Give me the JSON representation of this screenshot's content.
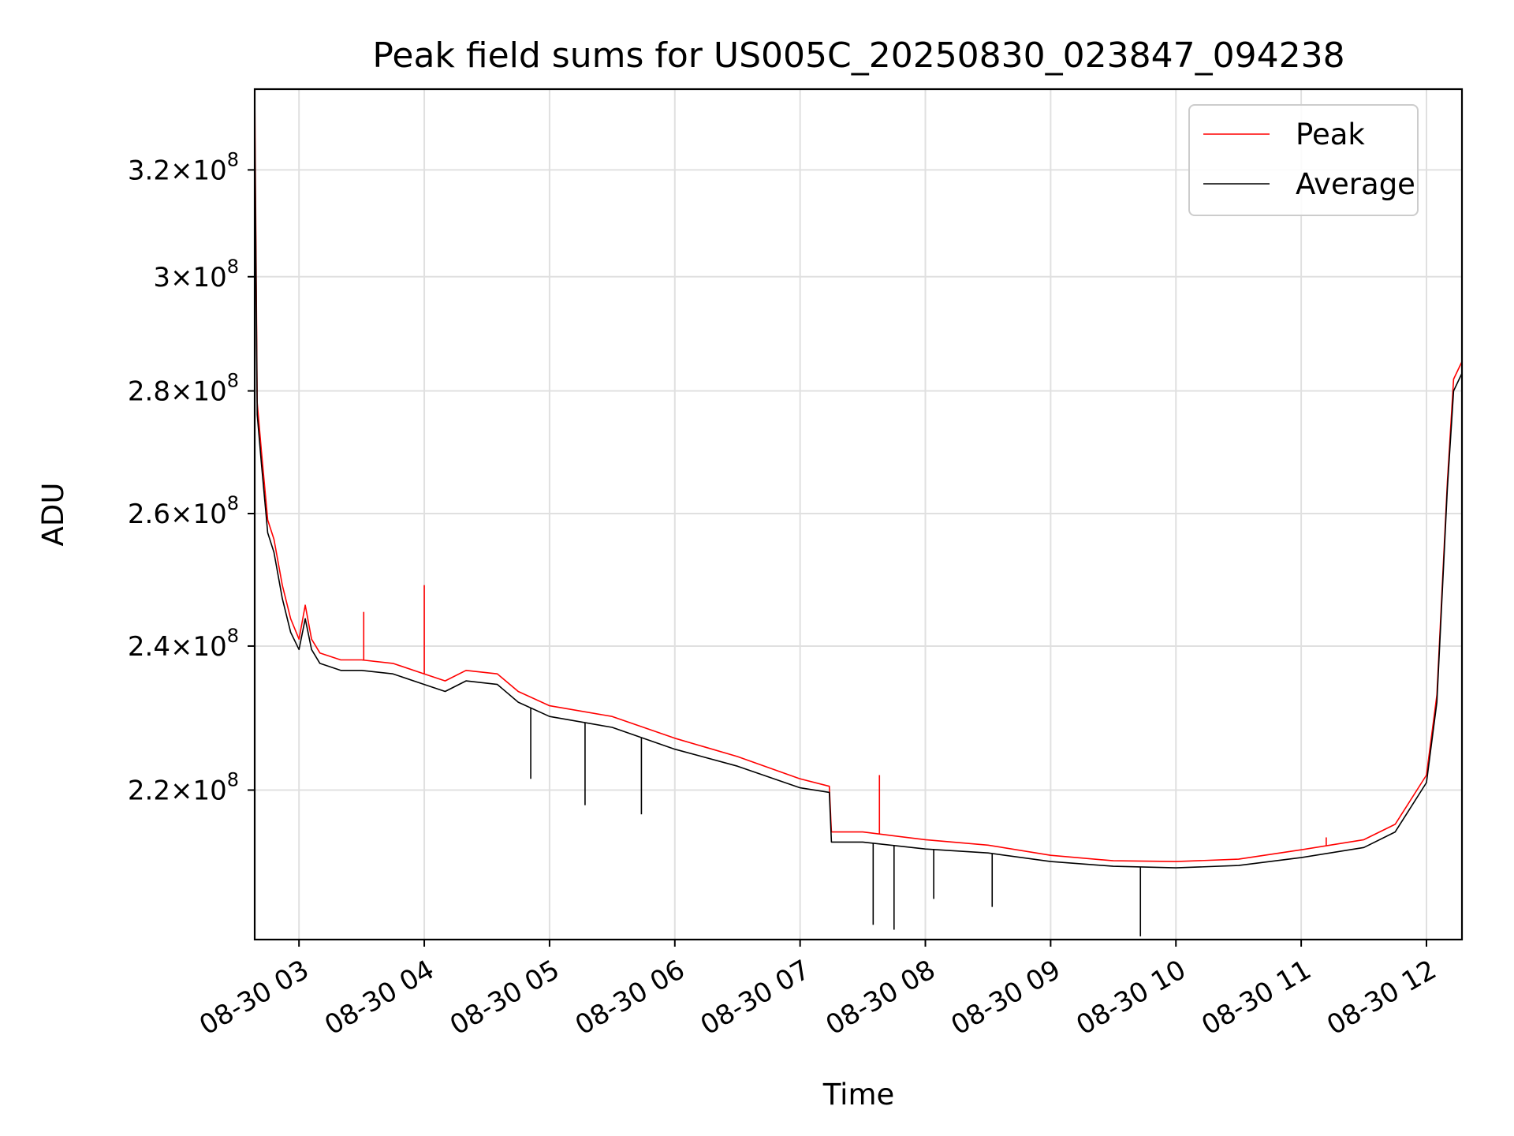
{
  "chart_data": {
    "type": "line",
    "title": "Peak field sums for US005C_20250830_023847_094238",
    "xlabel": "Time",
    "ylabel": "ADU",
    "x_range": [
      "2025-08-30 02:38:47",
      "2025-08-30 12:17:00"
    ],
    "ylim": [
      201000000,
      336000000
    ],
    "y_scale": "log",
    "grid": true,
    "legend_position": "top-right",
    "x_ticks": [
      {
        "time": "2025-08-30 03:00",
        "label": "08-30 03"
      },
      {
        "time": "2025-08-30 04:00",
        "label": "08-30 04"
      },
      {
        "time": "2025-08-30 05:00",
        "label": "08-30 05"
      },
      {
        "time": "2025-08-30 06:00",
        "label": "08-30 06"
      },
      {
        "time": "2025-08-30 07:00",
        "label": "08-30 07"
      },
      {
        "time": "2025-08-30 08:00",
        "label": "08-30 08"
      },
      {
        "time": "2025-08-30 09:00",
        "label": "08-30 09"
      },
      {
        "time": "2025-08-30 10:00",
        "label": "08-30 10"
      },
      {
        "time": "2025-08-30 11:00",
        "label": "08-30 11"
      },
      {
        "time": "2025-08-30 12:00",
        "label": "08-30 12"
      }
    ],
    "y_ticks": [
      {
        "value": 220000000,
        "mant": "2.2",
        "exp": "8"
      },
      {
        "value": 240000000,
        "mant": "2.4",
        "exp": "8"
      },
      {
        "value": 260000000,
        "mant": "2.6",
        "exp": "8"
      },
      {
        "value": 280000000,
        "mant": "2.8",
        "exp": "8"
      },
      {
        "value": 300000000,
        "mant": "3",
        "exp": "8"
      },
      {
        "value": 320000000,
        "mant": "3.2",
        "exp": "8"
      }
    ],
    "series": [
      {
        "name": "Peak",
        "color": "#ff0000",
        "points": [
          [
            "2025-08-30 02:38:47",
            336000000
          ],
          [
            "2025-08-30 02:40",
            278000000
          ],
          [
            "2025-08-30 02:42",
            270000000
          ],
          [
            "2025-08-30 02:45",
            259000000
          ],
          [
            "2025-08-30 02:48",
            256000000
          ],
          [
            "2025-08-30 02:52",
            249000000
          ],
          [
            "2025-08-30 02:56",
            244000000
          ],
          [
            "2025-08-30 03:00",
            241000000
          ],
          [
            "2025-08-30 03:03",
            246000000
          ],
          [
            "2025-08-30 03:06",
            241000000
          ],
          [
            "2025-08-30 03:10",
            239000000
          ],
          [
            "2025-08-30 03:20",
            238000000
          ],
          [
            "2025-08-30 03:30",
            238000000
          ],
          [
            "2025-08-30 03:45",
            237500000
          ],
          [
            "2025-08-30 04:00",
            236000000
          ],
          [
            "2025-08-30 04:10",
            235000000
          ],
          [
            "2025-08-30 04:20",
            236500000
          ],
          [
            "2025-08-30 04:35",
            236000000
          ],
          [
            "2025-08-30 04:45",
            233500000
          ],
          [
            "2025-08-30 05:00",
            231500000
          ],
          [
            "2025-08-30 05:30",
            230000000
          ],
          [
            "2025-08-30 06:00",
            227000000
          ],
          [
            "2025-08-30 06:30",
            224500000
          ],
          [
            "2025-08-30 07:00",
            221500000
          ],
          [
            "2025-08-30 07:14",
            220500000
          ],
          [
            "2025-08-30 07:15",
            214500000
          ],
          [
            "2025-08-30 07:30",
            214500000
          ],
          [
            "2025-08-30 08:00",
            213500000
          ],
          [
            "2025-08-30 08:30",
            212800000
          ],
          [
            "2025-08-30 09:00",
            211500000
          ],
          [
            "2025-08-30 09:30",
            210800000
          ],
          [
            "2025-08-30 10:00",
            210700000
          ],
          [
            "2025-08-30 10:30",
            211000000
          ],
          [
            "2025-08-30 11:00",
            212200000
          ],
          [
            "2025-08-30 11:30",
            213500000
          ],
          [
            "2025-08-30 11:45",
            215500000
          ],
          [
            "2025-08-30 12:00",
            222000000
          ],
          [
            "2025-08-30 12:05",
            233000000
          ],
          [
            "2025-08-30 12:10",
            265000000
          ],
          [
            "2025-08-30 12:13",
            282000000
          ],
          [
            "2025-08-30 12:17",
            285000000
          ]
        ]
      },
      {
        "name": "Average",
        "color": "#000000",
        "points": [
          [
            "2025-08-30 02:38:47",
            330000000
          ],
          [
            "2025-08-30 02:40",
            276000000
          ],
          [
            "2025-08-30 02:42",
            268000000
          ],
          [
            "2025-08-30 02:45",
            257000000
          ],
          [
            "2025-08-30 02:48",
            254000000
          ],
          [
            "2025-08-30 02:52",
            247000000
          ],
          [
            "2025-08-30 02:56",
            242000000
          ],
          [
            "2025-08-30 03:00",
            239500000
          ],
          [
            "2025-08-30 03:03",
            244000000
          ],
          [
            "2025-08-30 03:06",
            239500000
          ],
          [
            "2025-08-30 03:10",
            237500000
          ],
          [
            "2025-08-30 03:20",
            236500000
          ],
          [
            "2025-08-30 03:30",
            236500000
          ],
          [
            "2025-08-30 03:45",
            236000000
          ],
          [
            "2025-08-30 04:00",
            234500000
          ],
          [
            "2025-08-30 04:10",
            233500000
          ],
          [
            "2025-08-30 04:20",
            235000000
          ],
          [
            "2025-08-30 04:35",
            234500000
          ],
          [
            "2025-08-30 04:45",
            232000000
          ],
          [
            "2025-08-30 05:00",
            230000000
          ],
          [
            "2025-08-30 05:30",
            228500000
          ],
          [
            "2025-08-30 06:00",
            225500000
          ],
          [
            "2025-08-30 06:30",
            223200000
          ],
          [
            "2025-08-30 07:00",
            220300000
          ],
          [
            "2025-08-30 07:14",
            219700000
          ],
          [
            "2025-08-30 07:15",
            213200000
          ],
          [
            "2025-08-30 07:30",
            213200000
          ],
          [
            "2025-08-30 08:00",
            212300000
          ],
          [
            "2025-08-30 08:30",
            211800000
          ],
          [
            "2025-08-30 09:00",
            210700000
          ],
          [
            "2025-08-30 09:30",
            210100000
          ],
          [
            "2025-08-30 10:00",
            209900000
          ],
          [
            "2025-08-30 10:30",
            210200000
          ],
          [
            "2025-08-30 11:00",
            211200000
          ],
          [
            "2025-08-30 11:30",
            212500000
          ],
          [
            "2025-08-30 11:45",
            214500000
          ],
          [
            "2025-08-30 12:00",
            221000000
          ],
          [
            "2025-08-30 12:05",
            232000000
          ],
          [
            "2025-08-30 12:10",
            264000000
          ],
          [
            "2025-08-30 12:13",
            280000000
          ],
          [
            "2025-08-30 12:17",
            283000000
          ]
        ]
      }
    ],
    "spikes": [
      {
        "time": "2025-08-30 03:31",
        "value": 245000000,
        "series": "Peak"
      },
      {
        "time": "2025-08-30 04:00",
        "value": 249000000,
        "series": "Peak"
      },
      {
        "time": "2025-08-30 04:51",
        "value": 221500000,
        "series": "Average"
      },
      {
        "time": "2025-08-30 05:17",
        "value": 218000000,
        "series": "Average"
      },
      {
        "time": "2025-08-30 05:44",
        "value": 216800000,
        "series": "Average"
      },
      {
        "time": "2025-08-30 07:38",
        "value": 222000000,
        "series": "Peak"
      },
      {
        "time": "2025-08-30 07:35",
        "value": 202800000,
        "series": "Average"
      },
      {
        "time": "2025-08-30 07:45",
        "value": 202200000,
        "series": "Average"
      },
      {
        "time": "2025-08-30 08:04",
        "value": 206000000,
        "series": "Average"
      },
      {
        "time": "2025-08-30 08:32",
        "value": 205000000,
        "series": "Average"
      },
      {
        "time": "2025-08-30 09:43",
        "value": 201400000,
        "series": "Average"
      },
      {
        "time": "2025-08-30 11:12",
        "value": 213800000,
        "series": "Peak"
      }
    ]
  }
}
